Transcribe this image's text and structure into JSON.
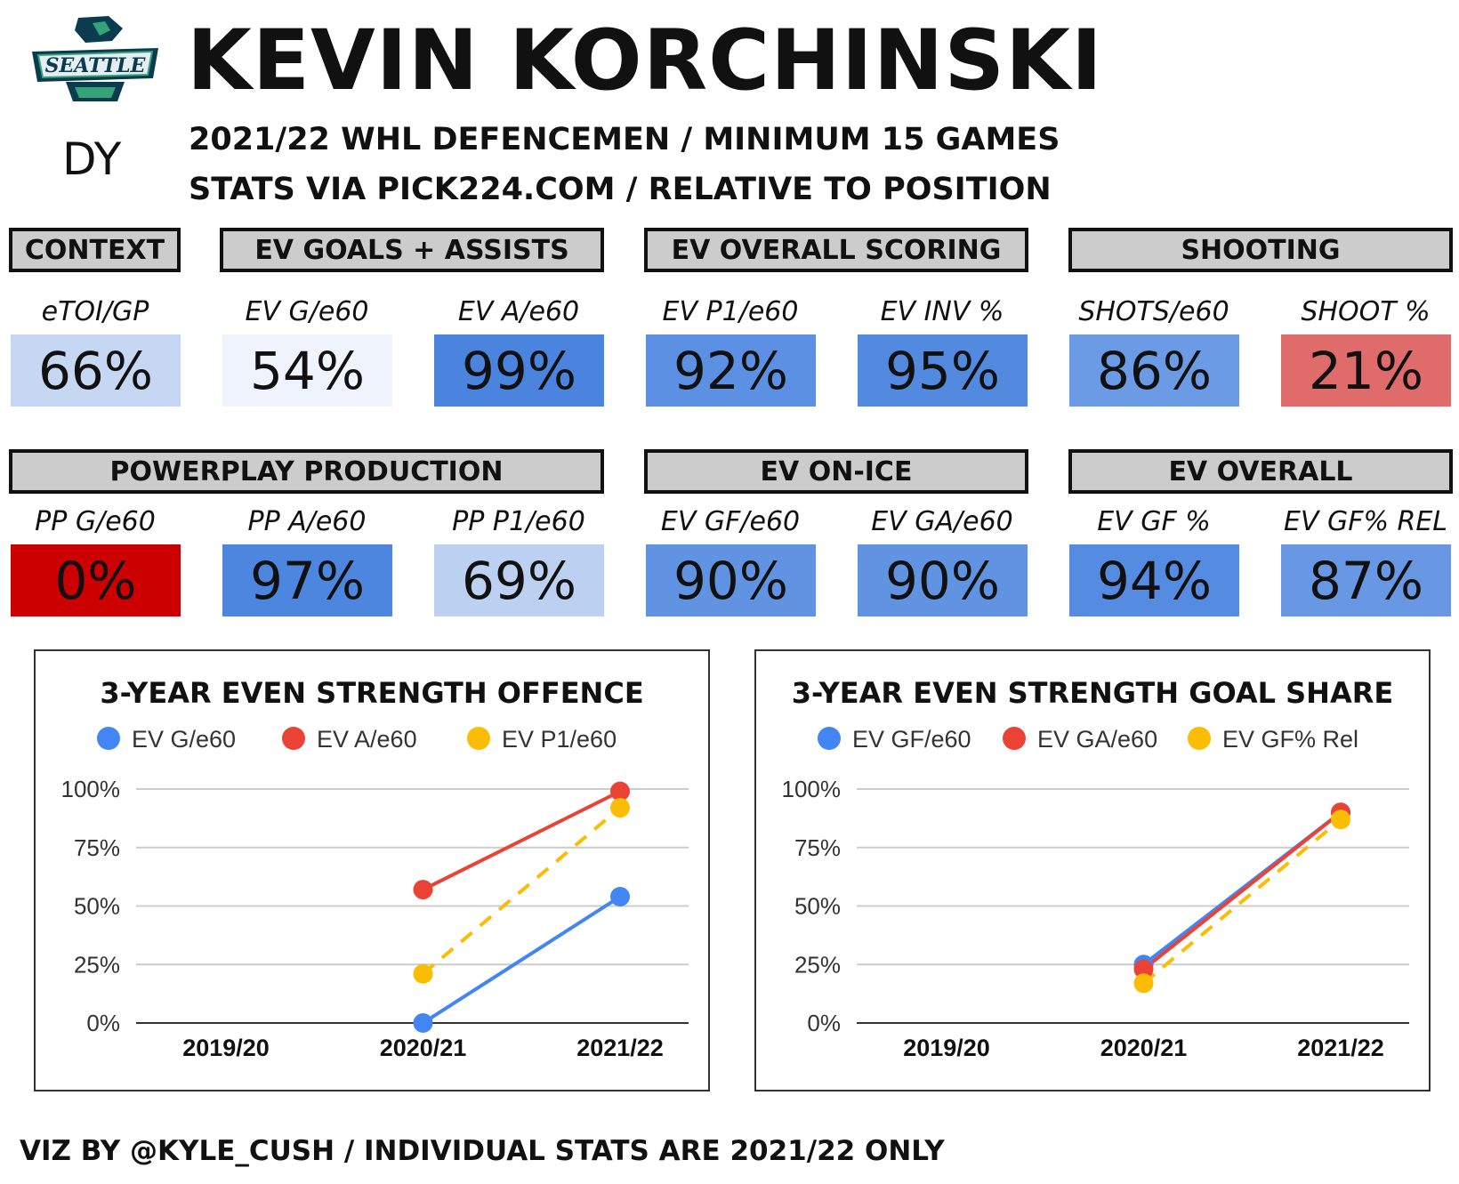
{
  "header": {
    "player_name": "KEVIN KORCHINSKI",
    "draft_label": "DY",
    "subtitle_1": "2021/22 WHL DEFENCEMEN / MINIMUM 15 GAMES",
    "subtitle_2": "STATS VIA PICK224.COM / RELATIVE TO POSITION",
    "logo_text": "SEATTLE"
  },
  "groups": [
    {
      "label": "CONTEXT"
    },
    {
      "label": "EV GOALS + ASSISTS"
    },
    {
      "label": "EV OVERALL SCORING"
    },
    {
      "label": "SHOOTING"
    },
    {
      "label": "POWERPLAY PRODUCTION"
    },
    {
      "label": "EV ON-ICE"
    },
    {
      "label": "EV OVERALL"
    }
  ],
  "metrics": [
    {
      "label": "eTOI/GP",
      "value": "66%",
      "color": "#c5d7f2"
    },
    {
      "label": "EV G/e60",
      "value": "54%",
      "color": "#eef3fc"
    },
    {
      "label": "EV A/e60",
      "value": "99%",
      "color": "#4a84df"
    },
    {
      "label": "EV P1/e60",
      "value": "92%",
      "color": "#5b90e2"
    },
    {
      "label": "EV INV %",
      "value": "95%",
      "color": "#528ae0"
    },
    {
      "label": "SHOTS/e60",
      "value": "86%",
      "color": "#6b9be5"
    },
    {
      "label": "SHOOT %",
      "value": "21%",
      "color": "#e06b6b"
    },
    {
      "label": "PP G/e60",
      "value": "0%",
      "color": "#cc0000"
    },
    {
      "label": "PP A/e60",
      "value": "97%",
      "color": "#4d86df"
    },
    {
      "label": "PP P1/e60",
      "value": "69%",
      "color": "#bcd1f2"
    },
    {
      "label": "EV GF/e60",
      "value": "90%",
      "color": "#6094e3"
    },
    {
      "label": "EV GA/e60",
      "value": "90%",
      "color": "#6094e3"
    },
    {
      "label": "EV GF %",
      "value": "94%",
      "color": "#558be1"
    },
    {
      "label": "EV GF% REL",
      "value": "87%",
      "color": "#6898e4"
    }
  ],
  "chart_data": [
    {
      "type": "line",
      "title": "3-YEAR EVEN STRENGTH OFFENCE",
      "categories": [
        "2019/20",
        "2020/21",
        "2021/22"
      ],
      "ylim": [
        0,
        100
      ],
      "yticks": [
        "0%",
        "25%",
        "50%",
        "75%",
        "100%"
      ],
      "legend_position": "top",
      "grid": true,
      "series": [
        {
          "name": "EV G/e60",
          "color": "#4285f4",
          "dashed": false,
          "values": [
            null,
            0,
            54
          ]
        },
        {
          "name": "EV A/e60",
          "color": "#ea4335",
          "dashed": false,
          "values": [
            null,
            57,
            99
          ]
        },
        {
          "name": "EV P1/e60",
          "color": "#fbbc04",
          "dashed": true,
          "values": [
            null,
            21,
            92
          ]
        }
      ]
    },
    {
      "type": "line",
      "title": "3-YEAR EVEN STRENGTH GOAL SHARE",
      "categories": [
        "2019/20",
        "2020/21",
        "2021/22"
      ],
      "ylim": [
        0,
        100
      ],
      "yticks": [
        "0%",
        "25%",
        "50%",
        "75%",
        "100%"
      ],
      "legend_position": "top",
      "grid": true,
      "series": [
        {
          "name": "EV GF/e60",
          "color": "#4285f4",
          "dashed": false,
          "values": [
            null,
            25,
            90
          ]
        },
        {
          "name": "EV GA/e60",
          "color": "#ea4335",
          "dashed": false,
          "values": [
            null,
            23,
            90
          ]
        },
        {
          "name": "EV GF% Rel",
          "color": "#fbbc04",
          "dashed": true,
          "values": [
            null,
            17,
            87
          ]
        }
      ]
    }
  ],
  "footer": {
    "text": "VIZ BY @KYLE_CUSH / INDIVIDUAL STATS ARE 2021/22 ONLY"
  }
}
